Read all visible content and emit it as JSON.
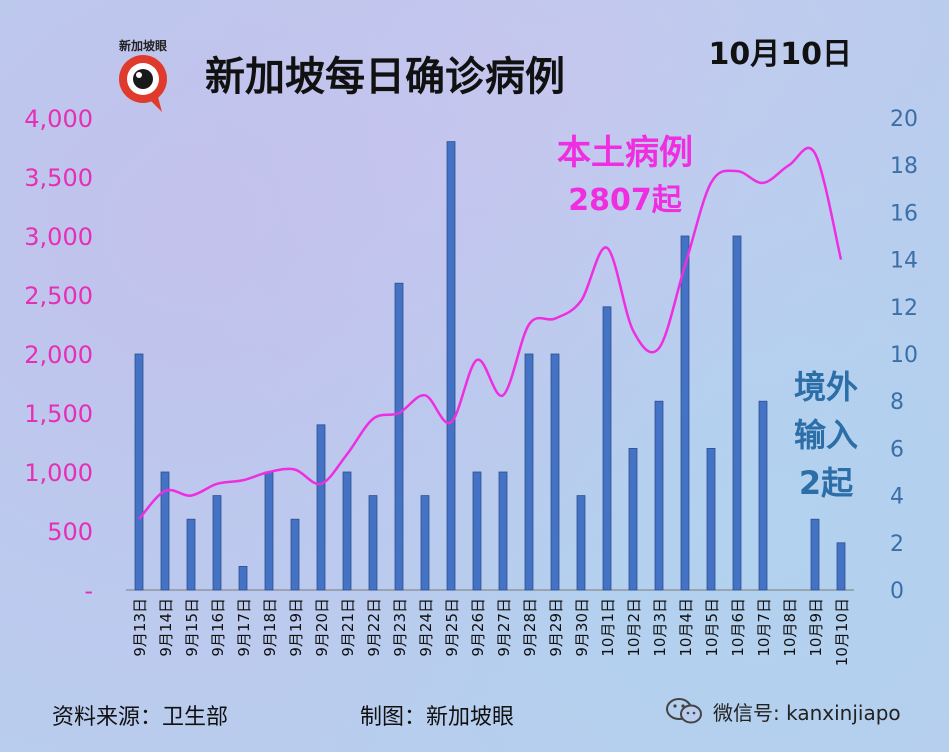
{
  "header": {
    "logo_text": "新加坡眼",
    "title": "新加坡每日确诊病例",
    "date": "10月10日"
  },
  "annotations": {
    "local_line1": "本土病例",
    "local_line2": "2807起",
    "imported_line1": "境外",
    "imported_line2": "输入",
    "imported_line3": "2起"
  },
  "footer": {
    "source": "资料来源：卫生部",
    "made_by": "制图：新加坡眼",
    "wechat": "微信号: kanxinjiapo"
  },
  "colors": {
    "bar": "#4472c4",
    "bar_edge": "#2f4f8f",
    "line": "#ee2ee0",
    "left_axis": "#e52fb5",
    "right_axis": "#3a6fa8",
    "imported_label": "#2c6ea8"
  },
  "chart_data": {
    "type": "bar+line",
    "categories": [
      "9月13日",
      "9月14日",
      "9月15日",
      "9月16日",
      "9月17日",
      "9月18日",
      "9月19日",
      "9月20日",
      "9月21日",
      "9月22日",
      "9月23日",
      "9月24日",
      "9月25日",
      "9月26日",
      "9月27日",
      "9月28日",
      "9月29日",
      "9月30日",
      "10月1日",
      "10月2日",
      "10月3日",
      "10月4日",
      "10月5日",
      "10月6日",
      "10月7日",
      "10月8日",
      "10月9日",
      "10月10日"
    ],
    "series": [
      {
        "type": "line",
        "axis": "left",
        "values": [
          600,
          840,
          800,
          900,
          930,
          1000,
          1020,
          900,
          1150,
          1450,
          1500,
          1650,
          1420,
          1950,
          1650,
          2250,
          2300,
          2450,
          2900,
          2200,
          2050,
          2750,
          3450,
          3550,
          3450,
          3600,
          3700,
          2800
        ]
      },
      {
        "type": "bar",
        "axis": "right",
        "values": [
          10,
          5,
          3,
          4,
          1,
          5,
          3,
          7,
          5,
          4,
          13,
          4,
          19,
          5,
          5,
          10,
          10,
          4,
          12,
          6,
          8,
          15,
          6,
          15,
          8,
          0,
          3,
          2
        ]
      }
    ],
    "left_axis": {
      "ticks": [
        "-",
        "500",
        "1,000",
        "1,500",
        "2,000",
        "2,500",
        "3,000",
        "3,500",
        "4,000"
      ],
      "ylim": [
        0,
        4000
      ]
    },
    "right_axis": {
      "ticks": [
        "0",
        "2",
        "4",
        "6",
        "8",
        "10",
        "12",
        "14",
        "16",
        "18",
        "20"
      ],
      "ylim": [
        0,
        20
      ]
    }
  }
}
